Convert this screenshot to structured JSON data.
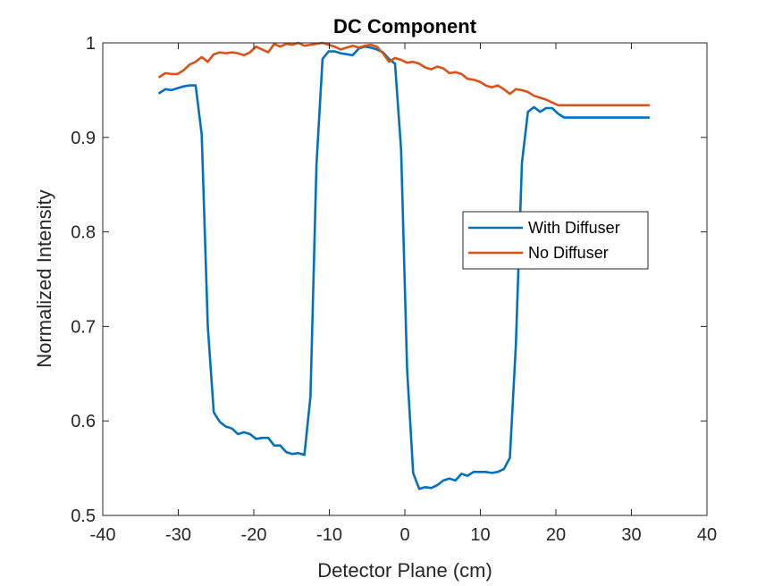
{
  "chart_data": {
    "type": "line",
    "title": "DC Component",
    "xlabel": "Detector Plane (cm)",
    "ylabel": "Normalized Intensity",
    "xlim": [
      -40,
      40
    ],
    "ylim": [
      0.5,
      1
    ],
    "xticks": [
      -40,
      -30,
      -20,
      -10,
      0,
      10,
      20,
      30,
      40
    ],
    "yticks": [
      0.5,
      0.6,
      0.7,
      0.8,
      0.9,
      1
    ],
    "xtick_labels": [
      "-40",
      "-30",
      "-20",
      "-10",
      "0",
      "10",
      "20",
      "30",
      "40"
    ],
    "ytick_labels": [
      "0.5",
      "0.6",
      "0.7",
      "0.8",
      "0.9",
      "1"
    ],
    "grid": false,
    "legend_position": "center-right",
    "series": [
      {
        "name": "With Diffuser",
        "color": "#0072BD",
        "x": [
          -32.5,
          -31.7,
          -30.9,
          -30.1,
          -29.3,
          -28.5,
          -27.7,
          -26.9,
          -26.1,
          -25.3,
          -24.5,
          -23.7,
          -22.9,
          -22.1,
          -21.3,
          -20.5,
          -19.7,
          -18.9,
          -18.1,
          -17.3,
          -16.5,
          -15.7,
          -14.9,
          -14.1,
          -13.3,
          -12.5,
          -11.7,
          -10.9,
          -10.1,
          -9.3,
          -8.5,
          -7.7,
          -6.9,
          -6.1,
          -5.3,
          -4.5,
          -3.7,
          -2.9,
          -2.1,
          -1.3,
          -0.5,
          0.3,
          1.1,
          1.9,
          2.7,
          3.5,
          4.3,
          5.1,
          5.9,
          6.7,
          7.5,
          8.3,
          9.1,
          9.9,
          10.7,
          11.5,
          12.3,
          13.1,
          13.9,
          14.7,
          15.5,
          16.3,
          17.1,
          17.9,
          18.7,
          19.5,
          20.3,
          21.1,
          21.9,
          22.7,
          23.5,
          24.3,
          25.1,
          25.9,
          26.7,
          27.5,
          28.3,
          29.1,
          29.9,
          30.7,
          31.5,
          32.3
        ],
        "values": [
          0.947,
          0.951,
          0.95,
          0.952,
          0.954,
          0.955,
          0.955,
          0.903,
          0.7,
          0.609,
          0.599,
          0.594,
          0.592,
          0.586,
          0.588,
          0.586,
          0.581,
          0.582,
          0.582,
          0.574,
          0.574,
          0.567,
          0.565,
          0.566,
          0.564,
          0.626,
          0.871,
          0.983,
          0.991,
          0.991,
          0.989,
          0.988,
          0.987,
          0.994,
          0.996,
          0.995,
          0.993,
          0.99,
          0.983,
          0.978,
          0.887,
          0.655,
          0.545,
          0.528,
          0.53,
          0.529,
          0.532,
          0.537,
          0.539,
          0.537,
          0.544,
          0.542,
          0.546,
          0.546,
          0.546,
          0.545,
          0.546,
          0.549,
          0.561,
          0.68,
          0.873,
          0.927,
          0.932,
          0.927,
          0.931,
          0.931,
          0.925,
          0.921,
          0.921,
          0.921,
          0.921,
          0.921,
          0.921,
          0.921,
          0.921,
          0.921,
          0.921,
          0.921,
          0.921,
          0.921,
          0.921,
          0.921
        ]
      },
      {
        "name": "No Diffuser",
        "color": "#D95319",
        "x": [
          -32.5,
          -31.7,
          -30.9,
          -30.1,
          -29.3,
          -28.5,
          -27.7,
          -26.9,
          -26.1,
          -25.3,
          -24.5,
          -23.7,
          -22.9,
          -22.1,
          -21.3,
          -20.5,
          -19.7,
          -18.9,
          -18.1,
          -17.3,
          -16.5,
          -15.7,
          -14.9,
          -14.1,
          -13.3,
          -12.5,
          -11.7,
          -10.9,
          -10.1,
          -9.3,
          -8.5,
          -7.7,
          -6.9,
          -6.1,
          -5.3,
          -4.5,
          -3.7,
          -2.9,
          -2.1,
          -1.3,
          -0.5,
          0.3,
          1.1,
          1.9,
          2.7,
          3.5,
          4.3,
          5.1,
          5.9,
          6.7,
          7.5,
          8.3,
          9.1,
          9.9,
          10.7,
          11.5,
          12.3,
          13.1,
          13.9,
          14.7,
          15.5,
          16.3,
          17.1,
          17.9,
          18.7,
          19.5,
          20.3,
          21.1,
          21.9,
          22.7,
          23.5,
          24.3,
          25.1,
          25.9,
          26.7,
          27.5,
          28.3,
          29.1,
          29.9,
          30.7,
          31.5,
          32.3
        ],
        "values": [
          0.964,
          0.968,
          0.967,
          0.967,
          0.971,
          0.977,
          0.98,
          0.985,
          0.98,
          0.988,
          0.99,
          0.989,
          0.99,
          0.989,
          0.987,
          0.99,
          0.996,
          0.993,
          0.99,
          0.999,
          0.996,
          0.999,
          0.998,
          1.0,
          0.997,
          0.998,
          0.999,
          1.0,
          0.998,
          0.996,
          0.993,
          0.995,
          0.997,
          0.995,
          0.997,
          0.998,
          0.996,
          0.989,
          0.98,
          0.984,
          0.982,
          0.979,
          0.98,
          0.978,
          0.974,
          0.972,
          0.975,
          0.973,
          0.968,
          0.969,
          0.967,
          0.962,
          0.961,
          0.959,
          0.955,
          0.953,
          0.955,
          0.951,
          0.946,
          0.951,
          0.95,
          0.948,
          0.944,
          0.942,
          0.94,
          0.937,
          0.934,
          0.934,
          0.934,
          0.934,
          0.934,
          0.934,
          0.934,
          0.934,
          0.934,
          0.934,
          0.934,
          0.934,
          0.934,
          0.934,
          0.934,
          0.934
        ]
      }
    ]
  }
}
